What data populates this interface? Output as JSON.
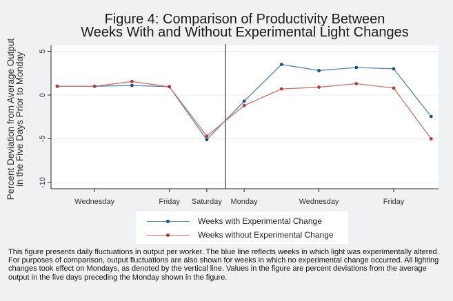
{
  "chart_data": {
    "type": "line",
    "title": "Figure 4: Comparison of Productivity Between Weeks With and Without Experimental Light Changes",
    "title_lines": [
      "Figure 4: Comparison of Productivity Between",
      "Weeks With and Without Experimental Light Changes"
    ],
    "xlabel": "",
    "ylabel": "Percent Deviation from Average Output in the Five Days Prior to Monday",
    "ylabel_lines": [
      "Percent Deviation from Average Output",
      "in the Five Days Prior to Monday"
    ],
    "ylim": [
      -11,
      5.5
    ],
    "yticks": [
      5,
      0,
      -5,
      -10
    ],
    "ytick_labels": [
      "5",
      "0",
      "-5",
      "-10"
    ],
    "grid": true,
    "x_positions": [
      0,
      1,
      2,
      3,
      4,
      5,
      6,
      7,
      8,
      9,
      10
    ],
    "xlim": [
      -0.25,
      10.25
    ],
    "xticks": [
      1,
      3,
      4,
      5,
      7,
      9
    ],
    "xtick_labels": [
      "Wednesday",
      "Friday",
      "Saturday",
      "Monday",
      "Wednesday",
      "Friday"
    ],
    "vertical_line_x": 4.5,
    "series": [
      {
        "name": "Weeks with Experimental Change",
        "color": "#5b84a6",
        "marker_color": "#1f4e79",
        "values": [
          1.0,
          1.0,
          1.1,
          0.95,
          -5.1,
          -0.7,
          3.5,
          2.8,
          3.15,
          3.0,
          -2.45
        ]
      },
      {
        "name": "Weeks without Experimental Change",
        "color": "#c27572",
        "marker_color": "#a83c3c",
        "values": [
          1.0,
          1.0,
          1.55,
          0.95,
          -4.7,
          -1.2,
          0.7,
          0.9,
          1.3,
          0.8,
          -5.0
        ]
      }
    ],
    "legend_position": "bottom"
  },
  "caption": "This figure presents daily fluctuations in output per worker. The blue line reflects weeks in which light was experimentally altered.  For purposes of comparison, output fluctuations are also shown for weeks in which no experimental change occurred.  All lighting changes took effect on Mondays, as denoted by the vertical line. Values in the figure are percent deviations from the average output in the five days preceding the Monday shown in the figure."
}
